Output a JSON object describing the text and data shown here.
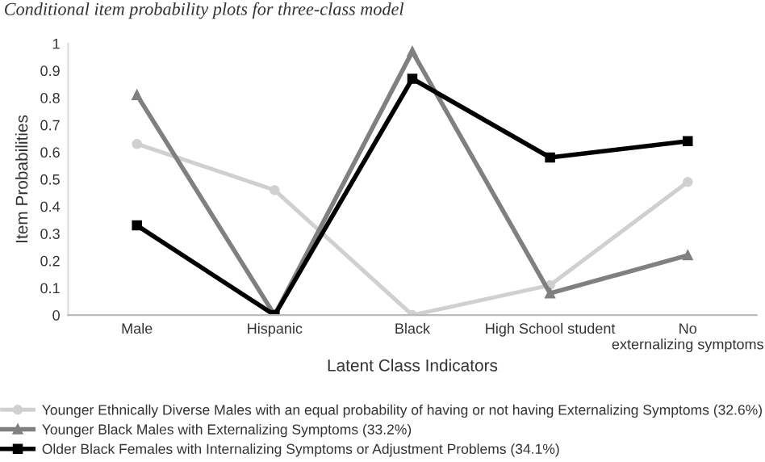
{
  "chart_data": {
    "type": "line",
    "title": "Conditional item probability plots for three-class model",
    "xlabel": "Latent Class Indicators",
    "ylabel": "Item Probabilities",
    "categories": [
      "Male",
      "Hispanic",
      "Black",
      "High School student",
      "No externalizing symptoms"
    ],
    "series": [
      {
        "name": "Younger Ethnically Diverse Males with an equal probability of having or not having Externalizing Symptoms (32.6%)",
        "color": "#d0d0d0",
        "marker": "circle",
        "values": [
          0.63,
          0.46,
          0.0,
          0.11,
          0.49
        ]
      },
      {
        "name": "Younger Black Males with Externalizing Symptoms (33.2%)",
        "color": "#808080",
        "marker": "triangle",
        "values": [
          0.81,
          0.0,
          0.97,
          0.08,
          0.22
        ]
      },
      {
        "name": "Older Black Females with Internalizing Symptoms or Adjustment Problems (34.1%)",
        "color": "#000000",
        "marker": "square",
        "values": [
          0.33,
          0.0,
          0.87,
          0.58,
          0.64
        ]
      }
    ],
    "ylim": [
      0,
      1
    ],
    "yticks": [
      0,
      0.1,
      0.2,
      0.3,
      0.4,
      0.5,
      0.6,
      0.7,
      0.8,
      0.9,
      1
    ],
    "grid": false,
    "legend": "bottom",
    "line_style": "solid"
  }
}
